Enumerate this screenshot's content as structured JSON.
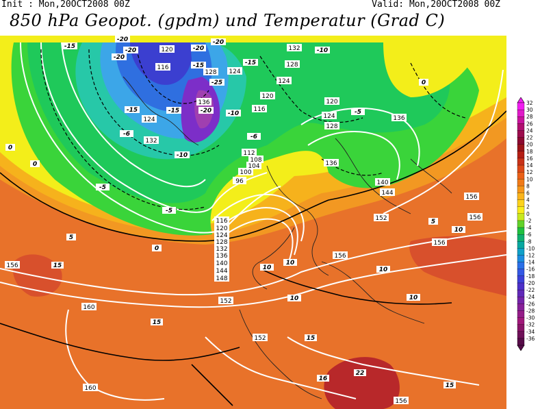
{
  "header": {
    "init_text": "Init : Mon,20OCT2008 00Z",
    "valid_text": "Valid: Mon,20OCT2008 00Z",
    "title": "850 hPa Geopot. (gpdm) und Temperatur (Grad C)"
  },
  "colors": {
    "t_neg36": "#6a1f7a",
    "t_neg30": "#a03fb0",
    "t_neg25": "#7c2ec8",
    "t_neg20": "#3b3fd0",
    "t_neg15": "#2f6fe0",
    "t_neg10": "#3ca6e8",
    "t_neg6": "#27c8a8",
    "t_neg2": "#1fc95a",
    "t_0": "#3ad43a",
    "t_2": "#c8e820",
    "t_4": "#f3ee1a",
    "t_6": "#ffd21a",
    "t_8": "#f6b21c",
    "t_10": "#f29822",
    "t_12": "#ee8426",
    "t_15": "#e8722a",
    "t_18": "#d8502c",
    "t_22": "#b8282a"
  },
  "geopotential_labels": [
    "116",
    "120",
    "124",
    "128",
    "132",
    "136",
    "140",
    "144",
    "148",
    "152",
    "156",
    "160",
    "112",
    "108",
    "104",
    "100",
    "96"
  ],
  "temperature_labels": [
    "-25",
    "-20",
    "-15",
    "-10",
    "-6",
    "-5",
    "0",
    "5",
    "10",
    "15",
    "16",
    "22"
  ],
  "colorbar": {
    "unit": "Grad C",
    "ticks": [
      "32",
      "30",
      "28",
      "26",
      "24",
      "22",
      "20",
      "18",
      "16",
      "14",
      "12",
      "10",
      "8",
      "6",
      "4",
      "2",
      "0",
      "-2",
      "-4",
      "-6",
      "-8",
      "-10",
      "-12",
      "-14",
      "-16",
      "-18",
      "-20",
      "-22",
      "-24",
      "-26",
      "-28",
      "-30",
      "-32",
      "-34",
      "-36"
    ],
    "colors": [
      "#f01ef0",
      "#e01ac8",
      "#c8149c",
      "#b01070",
      "#9c0c4c",
      "#8c0a30",
      "#9c1418",
      "#b41e14",
      "#c83218",
      "#dc4818",
      "#ea6018",
      "#f07a18",
      "#f6961a",
      "#fab41c",
      "#fcd21c",
      "#f8ec1a",
      "#c8e81e",
      "#62d22a",
      "#20c040",
      "#10b070",
      "#08a8a0",
      "#10a0c8",
      "#1c8ce0",
      "#2a70e8",
      "#3458e4",
      "#3c40d8",
      "#4c30c8",
      "#6028b8",
      "#7424a8",
      "#862098",
      "#941c88",
      "#a0187a",
      "#881468",
      "#6e1058",
      "#560c48"
    ]
  }
}
